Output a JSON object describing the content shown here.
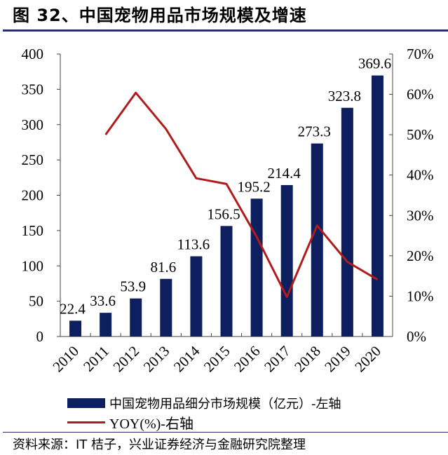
{
  "title": "图 32、中国宠物用品市场规模及增速",
  "source": "资料来源：IT 桔子，兴业证券经济与金融研究院整理",
  "colors": {
    "bar": "#0d1f5f",
    "line": "#b01c1c",
    "rule": "#2b2f6b"
  },
  "chart_data": {
    "type": "bar+line",
    "categories": [
      "2010",
      "2011",
      "2012",
      "2013",
      "2014",
      "2015",
      "2016",
      "2017",
      "2018",
      "2019",
      "2020"
    ],
    "series": [
      {
        "name": "中国宠物用品细分市场规模（亿元）-左轴",
        "type": "bar",
        "axis": "left",
        "values": [
          22.4,
          33.6,
          53.9,
          81.6,
          113.6,
          156.5,
          195.2,
          214.4,
          273.3,
          323.8,
          369.6
        ],
        "labels": [
          "22.4",
          "33.6",
          "53.9",
          "81.6",
          "113.6",
          "156.5",
          "195.2",
          "214.4",
          "273.3",
          "323.8",
          "369.6"
        ]
      },
      {
        "name": "YOY(%)-右轴",
        "type": "line",
        "axis": "right",
        "values": [
          null,
          50.0,
          60.4,
          51.4,
          39.2,
          37.8,
          24.7,
          9.8,
          27.5,
          18.5,
          14.1
        ]
      }
    ],
    "left_axis": {
      "ylim": [
        0,
        400
      ],
      "ticks": [
        "0",
        "50",
        "100",
        "150",
        "200",
        "250",
        "300",
        "350",
        "400"
      ]
    },
    "right_axis": {
      "ylim": [
        0,
        70
      ],
      "ticks": [
        "0%",
        "10%",
        "20%",
        "30%",
        "40%",
        "50%",
        "60%",
        "70%"
      ]
    },
    "grid": false,
    "legend_placement": "bottom"
  }
}
